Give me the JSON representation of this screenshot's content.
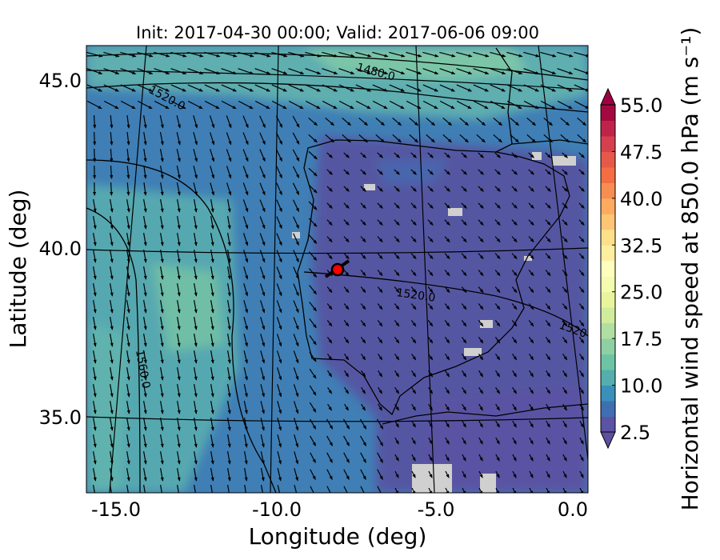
{
  "chart_data": {
    "type": "heatmap",
    "title": "Init: 2017-04-30 00:00; Valid: 2017-06-06 09:00",
    "xlabel": "Longitude (deg)",
    "ylabel": "Latitude (deg)",
    "xlim": [
      -15.9,
      0.3
    ],
    "ylim": [
      32.7,
      46.0
    ],
    "xticks": [
      "-15.0",
      "-10.0",
      "-5.0",
      "0.0"
    ],
    "yticks": [
      "45.0",
      "40.0",
      "35.0"
    ],
    "colorbar": {
      "label": "Horizontal wind speed at 850.0 hPa (m s⁻¹)",
      "range": [
        2.5,
        55.0
      ],
      "step": 2.5,
      "ticks": [
        "2.5",
        "10.0",
        "17.5",
        "25.0",
        "32.5",
        "40.0",
        "47.5",
        "55.0"
      ],
      "colors": [
        "#5b53a4",
        "#3f6fb2",
        "#3990ba",
        "#54aead",
        "#6cc4a4",
        "#8ed0a4",
        "#b0dfa2",
        "#d1ec9c",
        "#e8f59c",
        "#f5fbaf",
        "#fffebe",
        "#feeea0",
        "#fee08b",
        "#fdc574",
        "#fdab5e",
        "#f88d51",
        "#f46d43",
        "#e65848",
        "#d6404e",
        "#c02349",
        "#a3093f"
      ],
      "extend_low": "#5e4fa2",
      "extend_high": "#9e0142"
    },
    "contour_labels": [
      "1480.0",
      "1520.0",
      "1520.0",
      "1520",
      "1560.0"
    ],
    "marker": {
      "lon": -7.7,
      "lat": 39.3,
      "color": "#ff0000"
    }
  }
}
